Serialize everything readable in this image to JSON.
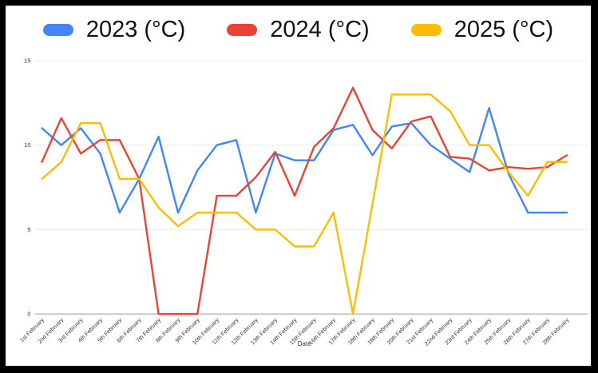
{
  "chart_data": {
    "type": "line",
    "title": "",
    "xlabel": "Date",
    "ylabel": "",
    "ylim": [
      0,
      15
    ],
    "y_ticks": [
      0,
      5,
      10,
      15
    ],
    "grid": true,
    "legend_position": "top",
    "categories": [
      "1st February",
      "2nd February",
      "3rd February",
      "4th February",
      "5th February",
      "6th February",
      "7th February",
      "8th February",
      "9th February",
      "10th February",
      "11th February",
      "12th February",
      "13th February",
      "14th February",
      "15th February",
      "16th February",
      "17th February",
      "18th February",
      "19th February",
      "20th February",
      "21st February",
      "22nd February",
      "23rd February",
      "24th February",
      "25th February",
      "26th February",
      "27th February",
      "28th February"
    ],
    "series": [
      {
        "name": "2023 (°C)",
        "color": "#4285F4",
        "values": [
          11,
          10,
          11,
          9.5,
          6,
          8,
          10.5,
          6,
          8.5,
          10,
          10.3,
          6,
          9.5,
          9.1,
          9.1,
          10.9,
          11.2,
          9.4,
          11.1,
          11.3,
          10,
          9.2,
          8.4,
          12.2,
          8.3,
          6,
          6,
          6
        ]
      },
      {
        "name": "2024 (°C)",
        "color": "#EA4335",
        "values": [
          9,
          11.6,
          9.5,
          10.3,
          10.3,
          8,
          0,
          0,
          0,
          7,
          7,
          8.1,
          9.6,
          7,
          9.9,
          11,
          13.4,
          10.9,
          9.8,
          11.4,
          11.7,
          9.3,
          9.2,
          8.5,
          8.7,
          8.6,
          8.7,
          9.4
        ]
      },
      {
        "name": "2025 (°C)",
        "color": "#FBBC04",
        "values": [
          8,
          9,
          11.3,
          11.3,
          8,
          8,
          6.3,
          5.2,
          6,
          6,
          6,
          5,
          5,
          4,
          4,
          6,
          0,
          6.5,
          13,
          13,
          13,
          12,
          10,
          10,
          8.4,
          7,
          9,
          9
        ]
      }
    ]
  },
  "colors": {
    "frame": "#000000",
    "background": "#FFFFFF",
    "gridline": "#ECECEC",
    "axis_line": "#9E9E9E",
    "tick_text": "#333333",
    "axis_title_text": "#333333",
    "legend_text": "#111111"
  }
}
